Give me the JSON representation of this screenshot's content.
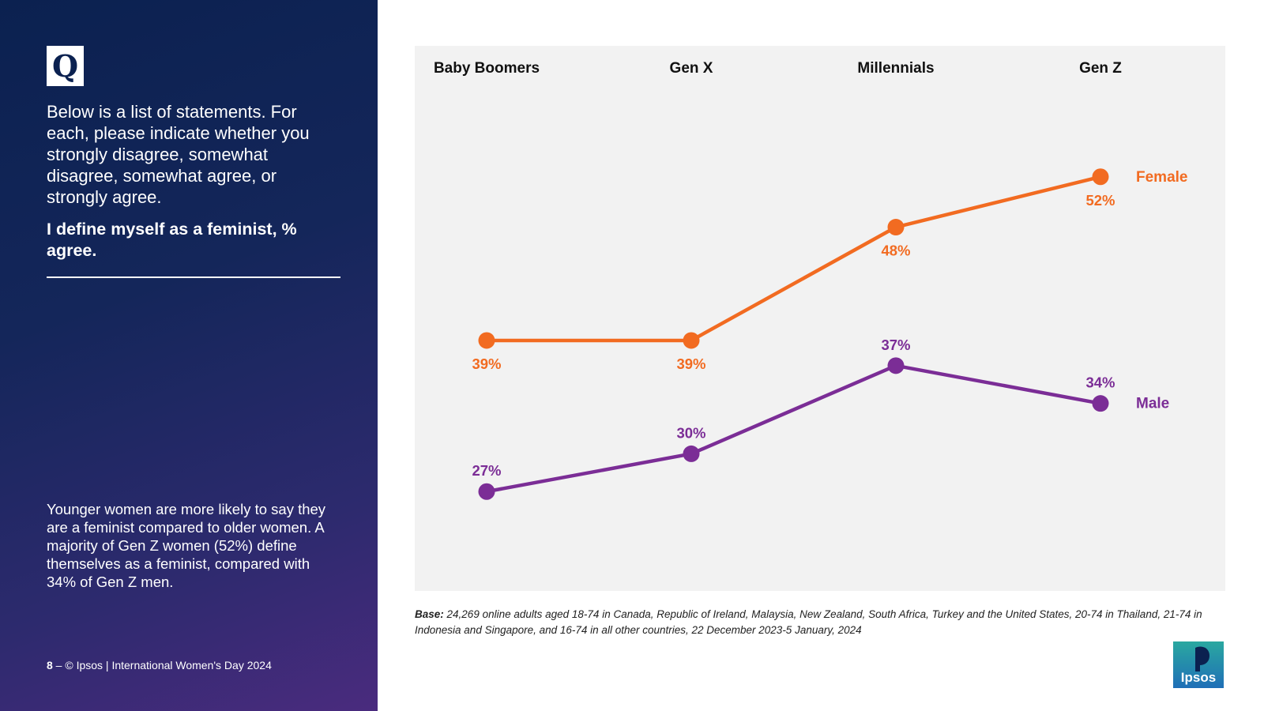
{
  "sidebar": {
    "q_badge": "Q",
    "question": "Below is a list of statements. For each, please indicate whether you strongly disagree, somewhat disagree, somewhat agree, or strongly agree.",
    "statement": "I define myself as a feminist, % agree.",
    "insight": "Younger women are more likely to say they are a feminist compared to older women. A majority of Gen Z women (52%) define themselves as a feminist, compared with 34% of Gen Z men.",
    "footer_page": "8",
    "footer_text": " – © Ipsos | International Women's Day 2024"
  },
  "chart_data": {
    "type": "line",
    "categories": [
      "Baby Boomers",
      "Gen X",
      "Millennials",
      "Gen Z"
    ],
    "series": [
      {
        "name": "Female",
        "values": [
          39,
          39,
          48,
          52
        ],
        "labels": [
          "39%",
          "39%",
          "48%",
          "52%"
        ],
        "color": "#f26b21"
      },
      {
        "name": "Male",
        "values": [
          27,
          30,
          37,
          34
        ],
        "labels": [
          "27%",
          "30%",
          "37%",
          "34%"
        ],
        "color": "#7b2d96"
      }
    ],
    "ylim": [
      23,
      56
    ],
    "title": "",
    "xlabel": "",
    "ylabel": ""
  },
  "base_note": {
    "label": "Base:",
    "text": " 24,269 online adults aged 18-74 in Canada, Republic of Ireland, Malaysia, New Zealand, South Africa, Turkey and the United States, 20-74 in Thailand, 21-74 in Indonesia and Singapore, and 16-74 in all other countries, 22 December 2023-5 January, 2024"
  },
  "logo": {
    "text": "Ipsos",
    "colors": {
      "top": "#2aa8a0",
      "bottom": "#1f6fb7",
      "mark": "#0b2150"
    }
  },
  "colors": {
    "panel_dark": "#0b2150",
    "panel_purple": "#4a2b7e",
    "chart_bg": "#f2f2f2"
  }
}
